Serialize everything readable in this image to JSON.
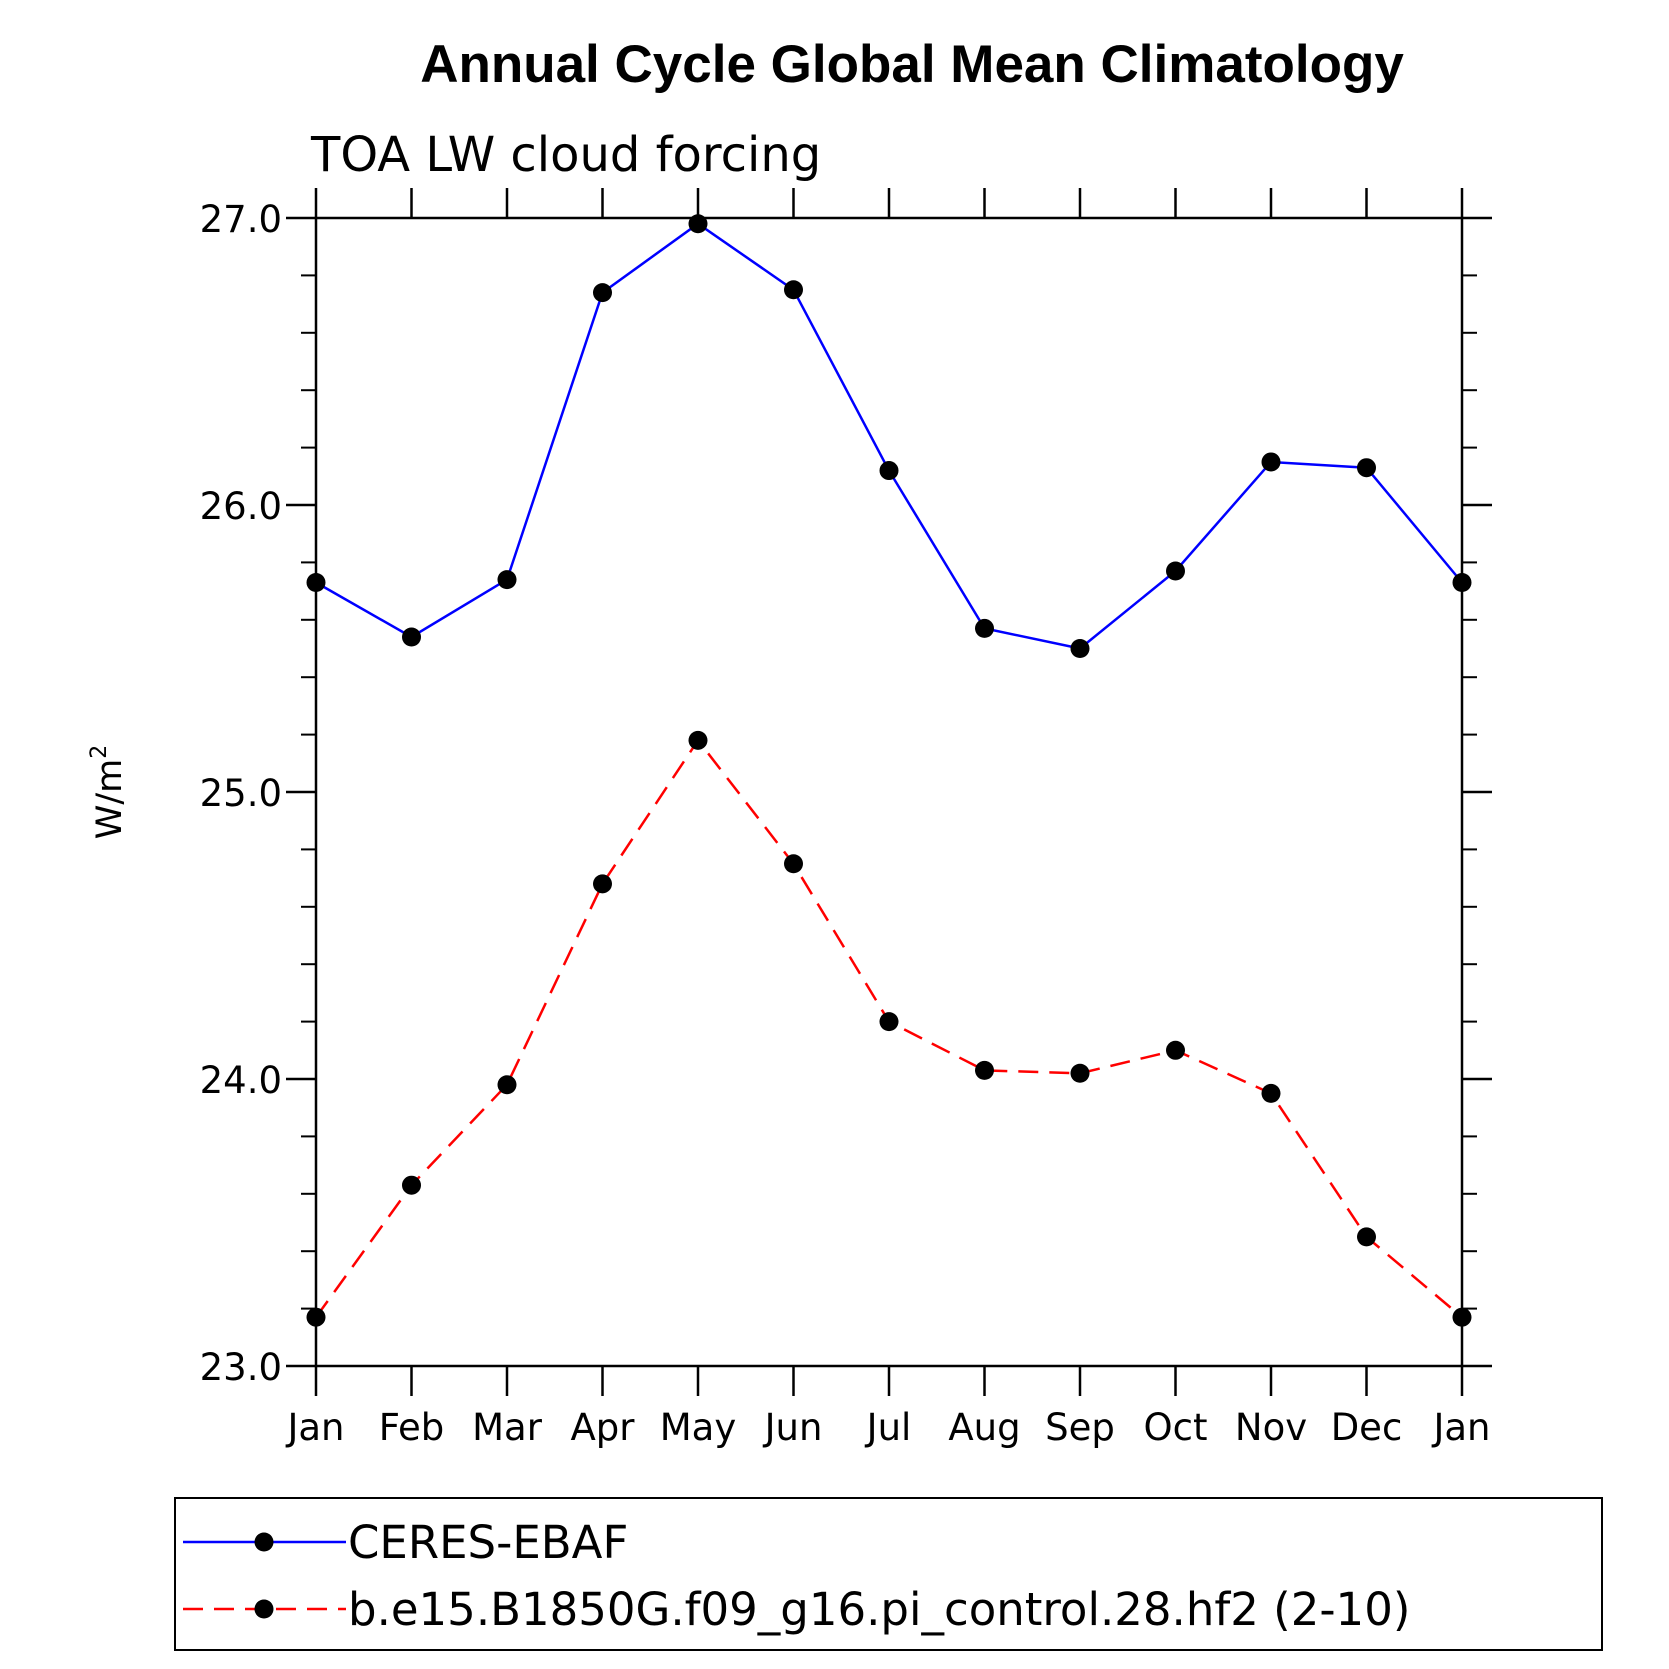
{
  "chart_data": {
    "type": "line",
    "title": "Annual Cycle Global Mean Climatology",
    "subtitle": "TOA LW cloud forcing",
    "ylabel": "W/m",
    "ylabel_superscript": "2",
    "xlabel": "",
    "categories": [
      "Jan",
      "Feb",
      "Mar",
      "Apr",
      "May",
      "Jun",
      "Jul",
      "Aug",
      "Sep",
      "Oct",
      "Nov",
      "Dec",
      "Jan"
    ],
    "ylim": [
      23.0,
      27.0
    ],
    "yticks": [
      "23.0",
      "24.0",
      "25.0",
      "26.0",
      "27.0"
    ],
    "y_minor_step": 0.2,
    "grid": false,
    "legend_position": "bottom",
    "series": [
      {
        "name": "CERES-EBAF",
        "color": "#0000ff",
        "line_style": "solid",
        "marker": "filled-circle",
        "values": [
          25.73,
          25.54,
          25.74,
          26.74,
          26.98,
          26.75,
          26.12,
          25.57,
          25.5,
          25.77,
          26.15,
          26.13,
          25.73
        ]
      },
      {
        "name": "b.e15.B1850G.f09_g16.pi_control.28.hf2 (2-10)",
        "color": "#ff0000",
        "line_style": "dashed",
        "marker": "filled-circle",
        "values": [
          23.17,
          23.63,
          23.98,
          24.68,
          25.18,
          24.75,
          24.2,
          24.03,
          24.02,
          24.1,
          23.95,
          23.45,
          23.17
        ]
      }
    ]
  }
}
